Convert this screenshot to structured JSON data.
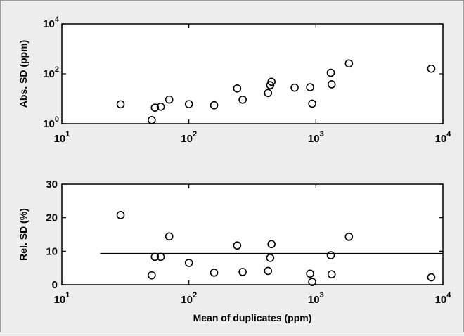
{
  "chart_data": [
    {
      "type": "scatter",
      "xscale": "log",
      "yscale": "log",
      "xlim": [
        10,
        10000
      ],
      "ylim": [
        1,
        10000
      ],
      "xticks": [
        {
          "value": 10,
          "base": "10",
          "exp": "1"
        },
        {
          "value": 100,
          "base": "10",
          "exp": "2"
        },
        {
          "value": 1000,
          "base": "10",
          "exp": "3"
        },
        {
          "value": 10000,
          "base": "10",
          "exp": "4"
        }
      ],
      "yticks": [
        {
          "value": 1,
          "base": "10",
          "exp": "0"
        },
        {
          "value": 100,
          "base": "10",
          "exp": "2"
        },
        {
          "value": 10000,
          "base": "10",
          "exp": "4"
        }
      ],
      "xlabel": "",
      "ylabel": "Abs. SD (ppm)",
      "grid": false,
      "x": [
        29,
        51,
        54,
        60,
        70,
        100,
        158,
        240,
        265,
        420,
        437,
        447,
        680,
        900,
        935,
        1310,
        1330,
        1820,
        8100
      ],
      "y": [
        6,
        1.4,
        4.4,
        4.8,
        9.3,
        6.1,
        5.5,
        26,
        9.2,
        17,
        35,
        48,
        28,
        29,
        6.4,
        110,
        38,
        260,
        160
      ]
    },
    {
      "type": "scatter",
      "xscale": "log",
      "yscale": "linear",
      "xlim": [
        10,
        10000
      ],
      "ylim": [
        0,
        30
      ],
      "xticks": [
        {
          "value": 10,
          "base": "10",
          "exp": "1"
        },
        {
          "value": 100,
          "base": "10",
          "exp": "2"
        },
        {
          "value": 1000,
          "base": "10",
          "exp": "3"
        },
        {
          "value": 10000,
          "base": "10",
          "exp": "4"
        }
      ],
      "yticks": [
        {
          "value": 0,
          "label": "0"
        },
        {
          "value": 10,
          "label": "10"
        },
        {
          "value": 20,
          "label": "20"
        },
        {
          "value": 30,
          "label": "30"
        }
      ],
      "xlabel": "Mean of duplicates (ppm)",
      "ylabel": "Rel. SD (%)",
      "grid": false,
      "x": [
        29,
        51,
        54,
        60,
        70,
        100,
        158,
        240,
        265,
        420,
        437,
        447,
        900,
        935,
        1310,
        1330,
        1820,
        8100
      ],
      "y": [
        20.8,
        2.8,
        8.3,
        8.3,
        14.4,
        6.5,
        3.6,
        11.7,
        3.8,
        4.1,
        8.0,
        12.1,
        3.3,
        0.8,
        8.8,
        3.1,
        14.3,
        2.2
      ],
      "reference_line": {
        "x": [
          20,
          10000
        ],
        "y": 9.3
      }
    }
  ]
}
